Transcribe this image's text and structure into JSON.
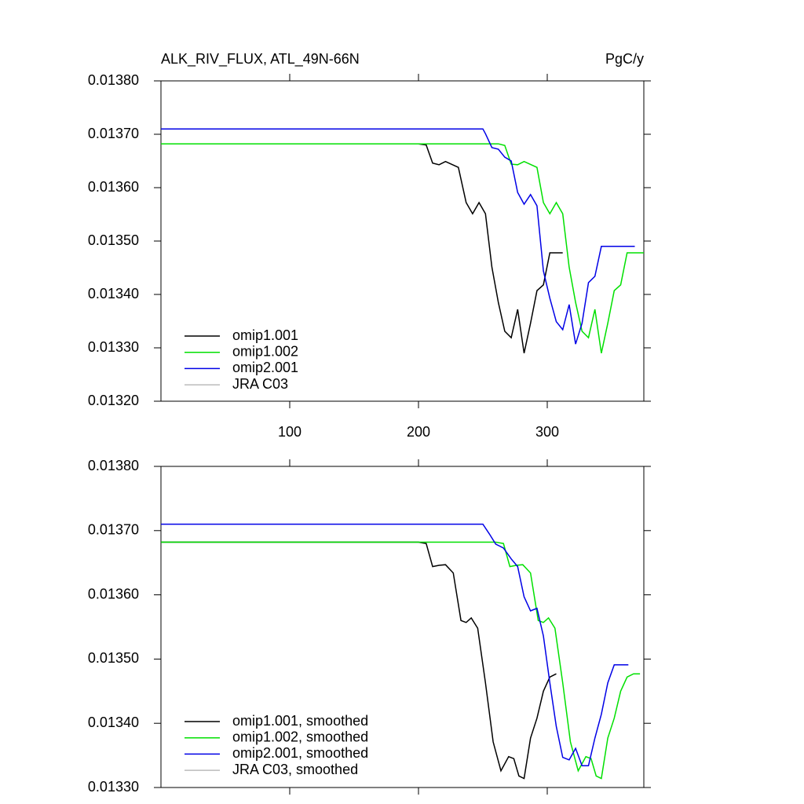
{
  "chart_data": [
    {
      "type": "line",
      "title": "ALK_RIV_FLUX, ATL_49N-66N",
      "units": "PgC/y",
      "xlim": [
        0,
        375
      ],
      "xticks": [
        100,
        200,
        300
      ],
      "ylim": [
        0.0132,
        0.0138
      ],
      "yticks": [
        {
          "value": 0.0132,
          "label": "0.01320"
        },
        {
          "value": 0.0133,
          "label": "0.01330"
        },
        {
          "value": 0.0134,
          "label": "0.01340"
        },
        {
          "value": 0.0135,
          "label": "0.01350"
        },
        {
          "value": 0.0136,
          "label": "0.01360"
        },
        {
          "value": 0.0137,
          "label": "0.01370"
        },
        {
          "value": 0.0138,
          "label": "0.01380"
        }
      ],
      "legend": "lower left",
      "series": [
        {
          "name": "omip1.001",
          "color": "#000000",
          "x": [
            0,
            200,
            206,
            211,
            216,
            221,
            231,
            237,
            242,
            247,
            252,
            257,
            262,
            267,
            272,
            277,
            282,
            287,
            292,
            297,
            302,
            312
          ],
          "values": [
            0.013682,
            0.013682,
            0.01368,
            0.013646,
            0.013643,
            0.013649,
            0.013638,
            0.013572,
            0.013551,
            0.013572,
            0.013551,
            0.013451,
            0.013385,
            0.013331,
            0.013319,
            0.013372,
            0.01329,
            0.013346,
            0.013407,
            0.013418,
            0.013478,
            0.013478
          ]
        },
        {
          "name": "omip1.002",
          "color": "#00e000",
          "x": [
            0,
            262,
            267,
            272,
            277,
            282,
            292,
            297,
            302,
            307,
            312,
            317,
            322,
            327,
            332,
            337,
            342,
            347,
            352,
            357,
            362,
            372,
            375
          ],
          "values": [
            0.013682,
            0.013682,
            0.013679,
            0.013644,
            0.013643,
            0.013649,
            0.013638,
            0.013572,
            0.013551,
            0.013572,
            0.013551,
            0.013451,
            0.013385,
            0.013331,
            0.013319,
            0.013372,
            0.01329,
            0.013346,
            0.013407,
            0.013418,
            0.013478,
            0.013478,
            0.013478
          ]
        },
        {
          "name": "omip2.001",
          "color": "#0000e6",
          "x": [
            0,
            250,
            252,
            257,
            262,
            267,
            272,
            277,
            282,
            287,
            292,
            297,
            302,
            307,
            312,
            317,
            322,
            327,
            332,
            337,
            342,
            368
          ],
          "values": [
            0.01371,
            0.01371,
            0.013701,
            0.013675,
            0.013672,
            0.013657,
            0.01365,
            0.013591,
            0.013569,
            0.013587,
            0.013566,
            0.013444,
            0.013393,
            0.013349,
            0.013334,
            0.013381,
            0.013307,
            0.013346,
            0.013422,
            0.013434,
            0.01349,
            0.01349
          ]
        },
        {
          "name": "JRA C03",
          "color": "#bbbbbb",
          "x": [],
          "values": []
        }
      ]
    },
    {
      "type": "line",
      "xlim": [
        0,
        375
      ],
      "ylim": [
        0.0133,
        0.0138
      ],
      "yticks": [
        {
          "value": 0.0133,
          "label": "0.01330"
        },
        {
          "value": 0.0134,
          "label": "0.01340"
        },
        {
          "value": 0.0135,
          "label": "0.01350"
        },
        {
          "value": 0.0136,
          "label": "0.01360"
        },
        {
          "value": 0.0137,
          "label": "0.01370"
        },
        {
          "value": 0.0138,
          "label": "0.01380"
        }
      ],
      "legend": "lower left",
      "series": [
        {
          "name": "omip1.001, smoothed",
          "color": "#000000",
          "x": [
            0,
            200,
            206,
            211,
            216,
            221,
            227,
            233,
            237,
            241,
            246,
            252,
            258,
            264,
            270,
            274,
            278,
            282,
            287,
            292,
            297,
            302,
            307
          ],
          "values": [
            0.013682,
            0.013682,
            0.01368,
            0.013644,
            0.013646,
            0.013647,
            0.013634,
            0.01356,
            0.013557,
            0.013564,
            0.013548,
            0.013463,
            0.013371,
            0.013326,
            0.013348,
            0.013345,
            0.013318,
            0.013314,
            0.013377,
            0.013408,
            0.01345,
            0.013472,
            0.013477
          ]
        },
        {
          "name": "omip1.002, smoothed",
          "color": "#00e000",
          "x": [
            0,
            260,
            266,
            271,
            276,
            281,
            287,
            293,
            297,
            301,
            306,
            312,
            318,
            324,
            330,
            334,
            338,
            342,
            347,
            352,
            357,
            362,
            367,
            372
          ],
          "values": [
            0.013682,
            0.013682,
            0.01368,
            0.013644,
            0.013646,
            0.013647,
            0.013634,
            0.01356,
            0.013557,
            0.013564,
            0.013548,
            0.013463,
            0.013371,
            0.013326,
            0.013348,
            0.013345,
            0.013318,
            0.013314,
            0.013377,
            0.013408,
            0.01345,
            0.013472,
            0.013477,
            0.013477
          ]
        },
        {
          "name": "omip2.001, smoothed",
          "color": "#0000e6",
          "x": [
            0,
            250,
            255,
            260,
            266,
            272,
            277,
            282,
            287,
            292,
            297,
            302,
            307,
            312,
            317,
            322,
            327,
            332,
            337,
            342,
            347,
            352,
            363
          ],
          "values": [
            0.01371,
            0.01371,
            0.013695,
            0.013679,
            0.013673,
            0.013656,
            0.013644,
            0.013597,
            0.013575,
            0.013579,
            0.013536,
            0.013463,
            0.013395,
            0.013347,
            0.013343,
            0.013361,
            0.013334,
            0.013334,
            0.013377,
            0.013414,
            0.013463,
            0.013491,
            0.013491
          ]
        },
        {
          "name": "JRA C03, smoothed",
          "color": "#bbbbbb",
          "x": [],
          "values": []
        }
      ]
    }
  ]
}
